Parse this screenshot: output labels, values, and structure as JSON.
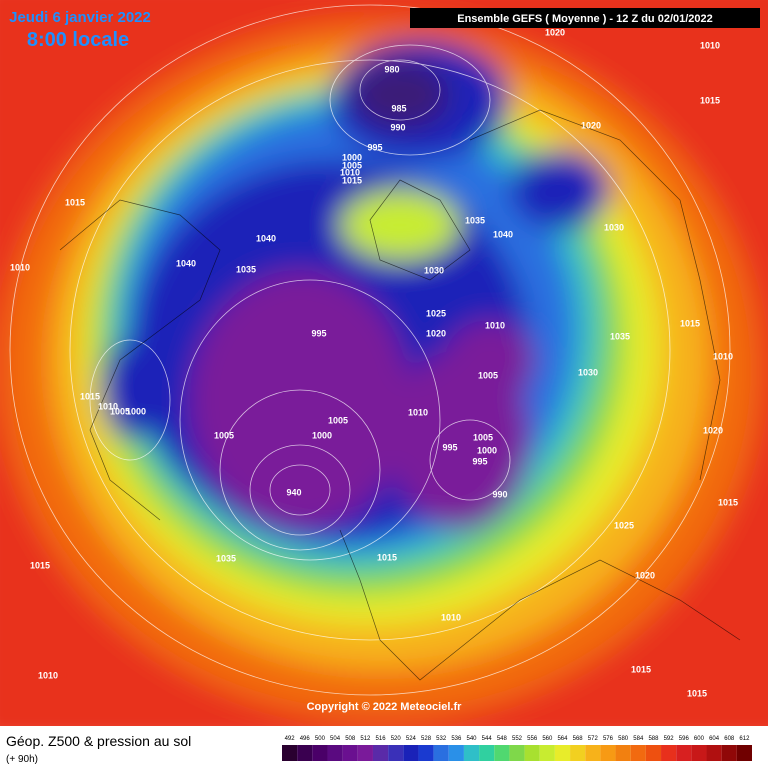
{
  "header": {
    "date": "Jeudi 6 janvier 2022",
    "time": "8:00 locale",
    "run": "Ensemble GEFS  ( Moyenne )  -  12 Z du 02/01/2022"
  },
  "isobar_labels": [
    1020,
    1010,
    1015,
    980,
    985,
    990,
    995,
    1000,
    1005,
    1010,
    1015,
    1020,
    1015,
    1040,
    1035,
    1040,
    1030,
    1010,
    1040,
    1035,
    1030,
    1025,
    1020,
    995,
    1010,
    1015,
    1035,
    1010,
    1005,
    1030,
    1015,
    1010,
    1005,
    1000,
    1010,
    1005,
    1000,
    1005,
    1005,
    995,
    1000,
    995,
    1020,
    990,
    940,
    1015,
    1025,
    1035,
    1015,
    1015,
    1020,
    1010,
    1015,
    1010,
    1015
  ],
  "copyright": "Copyright © 2022 Meteociel.fr",
  "footer": {
    "title": "Géop. Z500 & pression au sol",
    "lead": "(+ 90h)"
  },
  "legend": {
    "labels": [
      492,
      496,
      500,
      504,
      508,
      512,
      516,
      520,
      524,
      528,
      532,
      536,
      540,
      544,
      548,
      552,
      556,
      560,
      564,
      568,
      572,
      576,
      580,
      584,
      588,
      592,
      596,
      600,
      604,
      608,
      612
    ]
  }
}
